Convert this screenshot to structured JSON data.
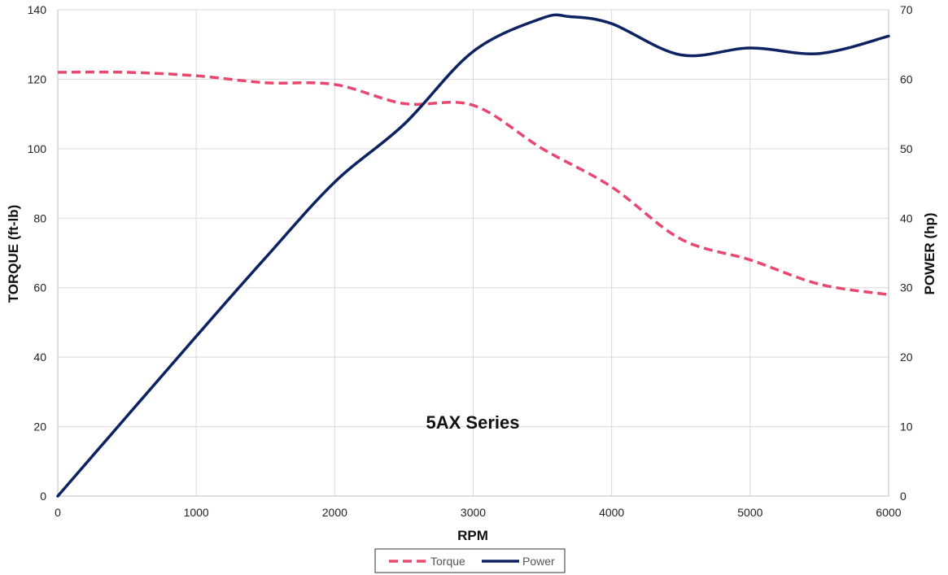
{
  "chart_data": {
    "type": "line",
    "annotation": "5AX Series",
    "xlabel": "RPM",
    "ylabel": "TORQUE (ft-lb)",
    "y2label": "POWER (hp)",
    "xlim": [
      0,
      6000
    ],
    "ylim": [
      0,
      140
    ],
    "y2lim": [
      0,
      70
    ],
    "x_ticks": [
      0,
      1000,
      2000,
      3000,
      4000,
      5000,
      6000
    ],
    "y_ticks": [
      0,
      20,
      40,
      60,
      80,
      100,
      120,
      140
    ],
    "y2_ticks": [
      0,
      10,
      20,
      30,
      40,
      50,
      60,
      70
    ],
    "grid": true,
    "legend_position": "bottom",
    "series": [
      {
        "name": "Torque",
        "axis": "left",
        "color": "#E8476F",
        "style": "dashed",
        "x": [
          0,
          500,
          1000,
          1500,
          2000,
          2500,
          3000,
          3500,
          4000,
          4500,
          5000,
          5500,
          6000
        ],
        "y": [
          122,
          122,
          121,
          119,
          118.5,
          113,
          112.5,
          100,
          89,
          74,
          68,
          61,
          58
        ]
      },
      {
        "name": "Power",
        "axis": "right",
        "color": "#0D2260",
        "style": "solid",
        "x": [
          0,
          1000,
          1500,
          2000,
          2500,
          3000,
          3500,
          3700,
          4000,
          4500,
          5000,
          5500,
          6000
        ],
        "y": [
          0,
          23,
          34.3,
          45.2,
          53.5,
          64,
          68.8,
          69,
          68,
          63.5,
          64.5,
          63.7,
          66.2
        ]
      }
    ]
  }
}
